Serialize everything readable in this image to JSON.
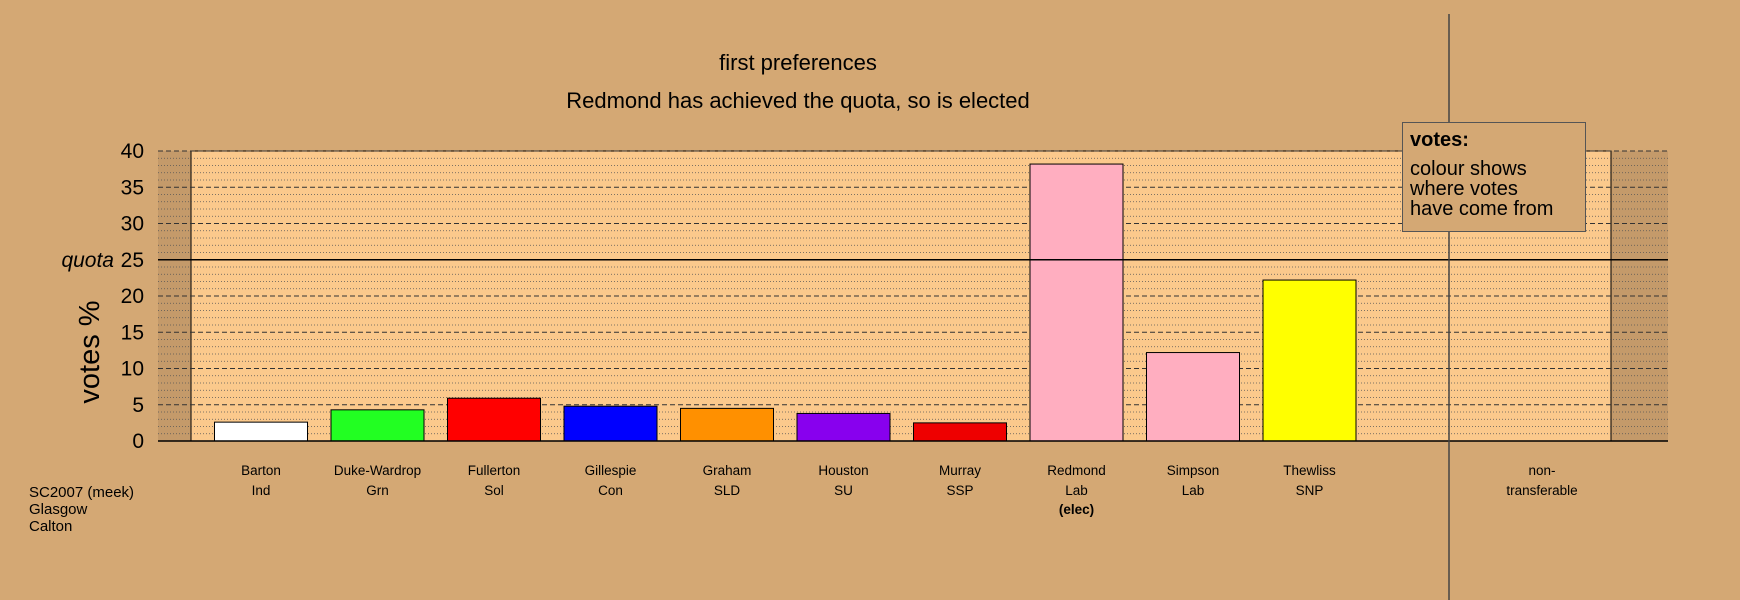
{
  "title": "first preferences",
  "subtitle": "Redmond has achieved the quota, so is elected",
  "quota_label": "quota",
  "elected_marker": "(elec)",
  "nontransferable": {
    "line1": "non-",
    "line2": "transferable"
  },
  "legend": {
    "heading": "votes:",
    "lines": [
      "colour shows",
      "where votes",
      "have come from"
    ]
  },
  "footer": {
    "line1": "SC2007 (meek)",
    "line2": "Glasgow",
    "line3": "Calton"
  },
  "chart_data": {
    "type": "bar",
    "ylabel": "votes %",
    "ylim": [
      0,
      40
    ],
    "yticks": [
      0,
      5,
      10,
      15,
      20,
      25,
      30,
      35,
      40
    ],
    "quota": 25,
    "grid": true,
    "legend_position": "top-right",
    "categories": [
      {
        "name": "Barton",
        "party": "Ind",
        "value": 2.6,
        "color": "#ffffff",
        "elected": false
      },
      {
        "name": "Duke-Wardrop",
        "party": "Grn",
        "value": 4.3,
        "color": "#22ff22",
        "elected": false
      },
      {
        "name": "Fullerton",
        "party": "Sol",
        "value": 5.9,
        "color": "#ff0000",
        "elected": false
      },
      {
        "name": "Gillespie",
        "party": "Con",
        "value": 4.8,
        "color": "#0000ff",
        "elected": false
      },
      {
        "name": "Graham",
        "party": "SLD",
        "value": 4.5,
        "color": "#ff9000",
        "elected": false
      },
      {
        "name": "Houston",
        "party": "SU",
        "value": 3.8,
        "color": "#8800ee",
        "elected": false
      },
      {
        "name": "Murray",
        "party": "SSP",
        "value": 2.5,
        "color": "#ee0000",
        "elected": false
      },
      {
        "name": "Redmond",
        "party": "Lab",
        "value": 38.2,
        "color": "#ffaec0",
        "elected": true
      },
      {
        "name": "Simpson",
        "party": "Lab",
        "value": 12.2,
        "color": "#ffaec0",
        "elected": false
      },
      {
        "name": "Thewliss",
        "party": "SNP",
        "value": 22.2,
        "color": "#ffff00",
        "elected": false
      }
    ],
    "nontransferable_value": 0
  }
}
